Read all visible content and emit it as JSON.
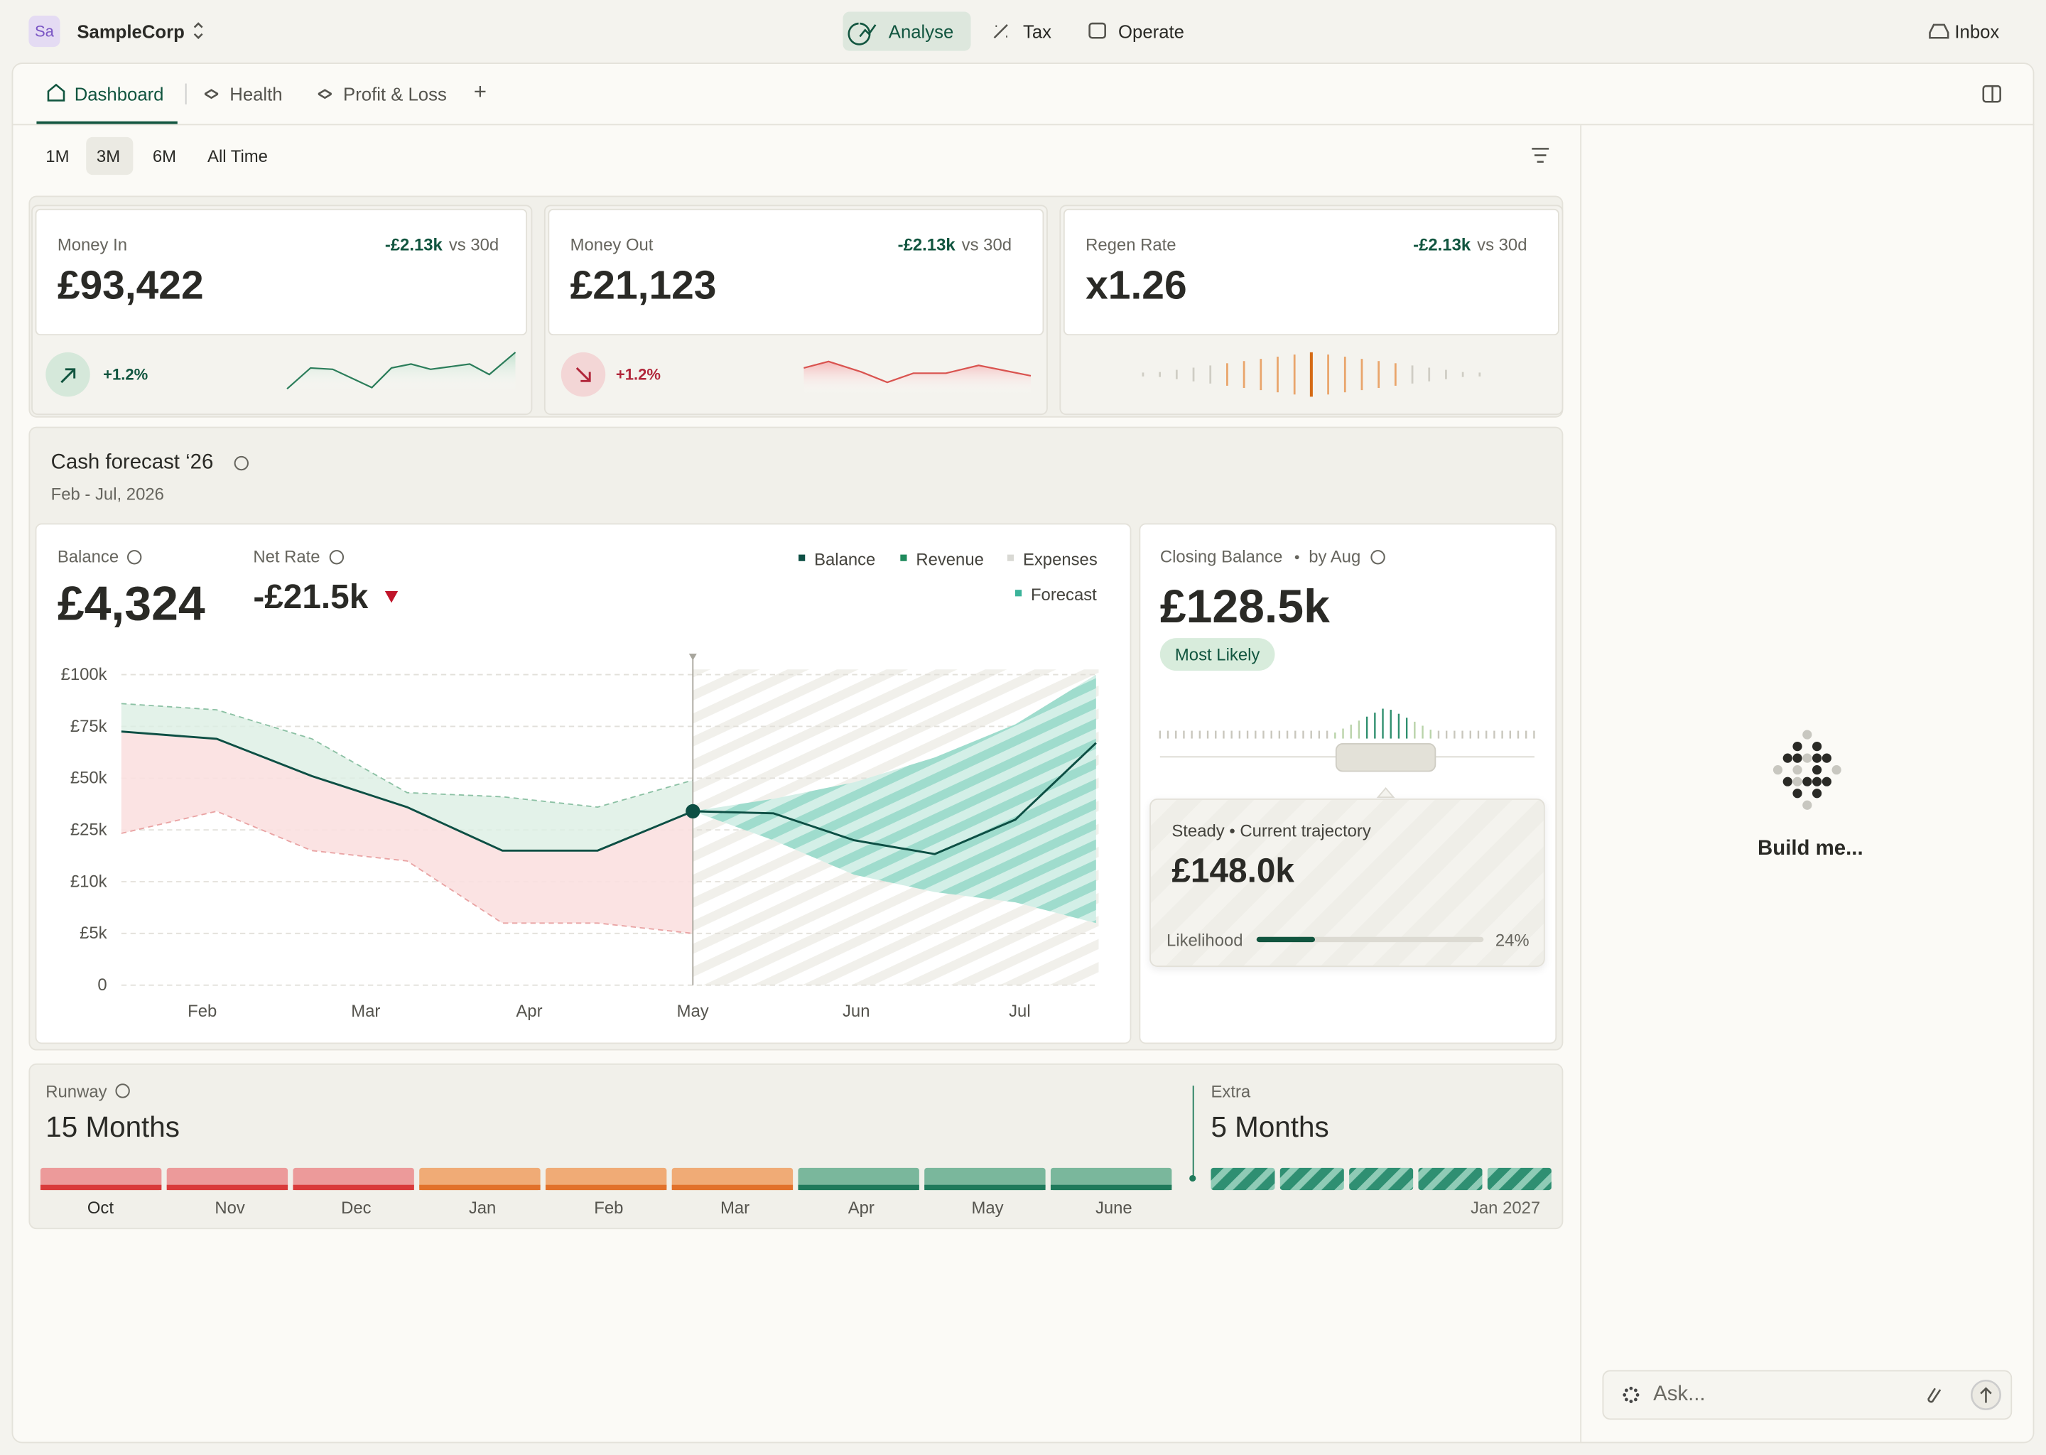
{
  "topbar": {
    "avatar": "Sa",
    "org": "SampleCorp",
    "nav": [
      "Analyse",
      "Tax",
      "Operate"
    ],
    "inbox": "Inbox"
  },
  "tabs": [
    "Dashboard",
    "Health",
    "Profit & Loss",
    "+"
  ],
  "ranges": [
    "1M",
    "3M",
    "6M",
    "All Time"
  ],
  "kpis": [
    {
      "label": "Money In",
      "delta": "-£2.13k",
      "vs": "vs 30d",
      "value": "£93,422",
      "change": "+1.2%"
    },
    {
      "label": "Money Out",
      "delta": "-£2.13k",
      "vs": "vs 30d",
      "value": "£21,123",
      "change": "+1.2%"
    },
    {
      "label": "Regen Rate",
      "delta": "-£2.13k",
      "vs": "vs 30d",
      "value": "x1.26"
    }
  ],
  "forecast": {
    "title": "Cash forecast ‘26",
    "subtitle": "Feb - Jul, 2026",
    "balance_label": "Balance",
    "balance": "£4,324",
    "net_rate_label": "Net Rate",
    "net_rate": "-£21.5k",
    "chart": {
      "type": "area",
      "x_labels": [
        "Feb",
        "Mar",
        "Apr",
        "May",
        "Jun",
        "Jul"
      ],
      "yticks": [
        {
          "value": 0,
          "label": "0"
        },
        {
          "value": 5000,
          "label": "£5k"
        },
        {
          "value": 10000,
          "label": "£10k"
        },
        {
          "value": 25000,
          "label": "£25k"
        },
        {
          "value": 50000,
          "label": "£50k"
        },
        {
          "value": 75000,
          "label": "£75k"
        },
        {
          "value": 100000,
          "label": "£100k"
        }
      ],
      "ylim": [
        0,
        100000
      ],
      "grid": true,
      "series": [
        {
          "name": "Balance",
          "color": "#0d4f44",
          "values": [
            72500,
            69000,
            51000,
            36000,
            19000,
            19000,
            34000,
            33000,
            22000,
            18000,
            30000,
            67000
          ]
        },
        {
          "name": "Revenue",
          "color": "#1f8a5c",
          "values": [
            86000,
            83000,
            69000,
            43000,
            41000,
            36000,
            49000,
            null,
            null,
            null,
            null,
            null
          ]
        },
        {
          "name": "Expenses",
          "color": "#d9d9d4",
          "values": [
            24000,
            34000,
            19000,
            16000,
            6000,
            6000,
            5000,
            null,
            null,
            null,
            null,
            null
          ]
        },
        {
          "name": "Forecast",
          "color": "#3bb39a",
          "values": [
            null,
            null,
            null,
            null,
            null,
            null,
            34000,
            40000,
            48000,
            60000,
            76000,
            100000
          ],
          "low": [
            null,
            null,
            null,
            null,
            null,
            null,
            34000,
            22000,
            12000,
            9000,
            8000,
            6000
          ]
        }
      ]
    }
  },
  "closing": {
    "label": "Closing Balance",
    "by": "by Aug",
    "value": "£128.5k",
    "badge": "Most Likely",
    "scenario": "Steady • Current trajectory",
    "scenario_value": "£148.0k",
    "likelihood_label": "Likelihood",
    "likelihood": {
      "value": 24,
      "label": "24%"
    }
  },
  "runway": {
    "label": "Runway",
    "value": "15 Months",
    "months": [
      "Oct",
      "Nov",
      "Dec",
      "Jan",
      "Feb",
      "Mar",
      "Apr",
      "May",
      "June"
    ],
    "extra_label": "Extra",
    "extra_value": "5 Months",
    "end": "Jan 2027"
  },
  "assistant": {
    "prompt": "Build me...",
    "placeholder": "Ask..."
  }
}
